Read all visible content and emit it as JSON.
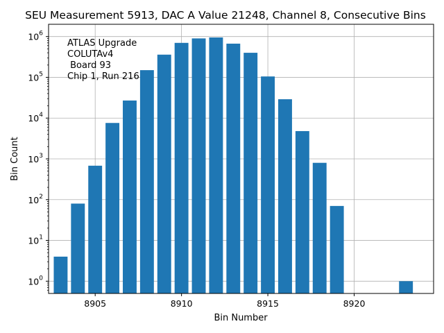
{
  "chart_data": {
    "type": "bar",
    "title": "SEU Measurement 5913, DAC A Value 21248, Channel 8, Consecutive Bins",
    "xlabel": "Bin Number",
    "ylabel": "Bin Count",
    "yscale": "log",
    "xlim": [
      8902.3,
      8924.6
    ],
    "ylim": [
      0.5,
      2000000
    ],
    "grid": true,
    "color": "#1f77b4",
    "x": [
      8903,
      8904,
      8905,
      8906,
      8907,
      8908,
      8909,
      8910,
      8911,
      8912,
      8913,
      8914,
      8915,
      8916,
      8917,
      8918,
      8919,
      8923
    ],
    "values": [
      4,
      80,
      680,
      7600,
      27000,
      150000,
      360000,
      700000,
      900000,
      950000,
      670000,
      400000,
      105000,
      29000,
      4800,
      800,
      70,
      1
    ],
    "x_ticks": [
      8905,
      8910,
      8915,
      8920
    ],
    "x_tick_labels": [
      "8905",
      "8910",
      "8915",
      "8920"
    ],
    "y_ticks": [
      1,
      10,
      100,
      1000,
      10000,
      100000,
      1000000
    ],
    "y_tick_labels": [
      {
        "base": "10",
        "exp": "0"
      },
      {
        "base": "10",
        "exp": "1"
      },
      {
        "base": "10",
        "exp": "2"
      },
      {
        "base": "10",
        "exp": "3"
      },
      {
        "base": "10",
        "exp": "4"
      },
      {
        "base": "10",
        "exp": "5"
      },
      {
        "base": "10",
        "exp": "6"
      }
    ],
    "annotation_lines": [
      "ATLAS Upgrade",
      "COLUTAv4",
      " Board 93",
      "Chip 1, Run 216"
    ]
  }
}
